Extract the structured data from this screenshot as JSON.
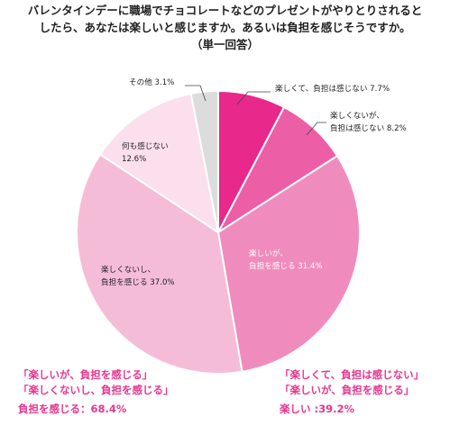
{
  "title_lines": [
    "バレンタインデーに職場でチョコレートなどのプレゼントがやりとりされると",
    "したら、あなたは楽しいと感じますか。あるいは負担を感じそうですか。",
    "（単一回答）"
  ],
  "chart_data": {
    "type": "pie",
    "title": "バレンタインデーに職場でチョコレートなどのプレゼントがやりとりされるとしたら、あなたは楽しいと感じますか。あるいは負担を感じそうですか。（単一回答）",
    "start": "12 o'clock",
    "direction": "clockwise",
    "slices": [
      {
        "lines": [
          "楽しくて、負担は感じない 7.7%"
        ],
        "value": 7.7,
        "color": "#e8288a"
      },
      {
        "lines": [
          "楽しくないが、",
          "負担は感じない 8.2%"
        ],
        "value": 8.2,
        "color": "#ec5ea6"
      },
      {
        "lines": [
          "楽しいが、",
          "負担を感じる 31.4%"
        ],
        "value": 31.4,
        "color": "#f08cbd"
      },
      {
        "lines": [
          "楽しくないし、",
          "負担を感じる 37.0%"
        ],
        "value": 37.0,
        "color": "#f5bcd8"
      },
      {
        "lines": [
          "何も感じない",
          "12.6%"
        ],
        "value": 12.6,
        "color": "#fbdfec"
      },
      {
        "lines": [
          "その他 3.1%"
        ],
        "value": 3.1,
        "color": "#dcdcdc"
      }
    ]
  },
  "summary_left": {
    "lines": [
      "「楽しいが、負担を感じる」",
      "「楽しくないし、負担を感じる」"
    ],
    "total": "負担を感じる：68.4%"
  },
  "summary_right": {
    "lines": [
      "「楽しくて、負担は感じない」",
      "「楽しいが、負担を感じる」"
    ],
    "total": "楽しい :39.2%"
  }
}
